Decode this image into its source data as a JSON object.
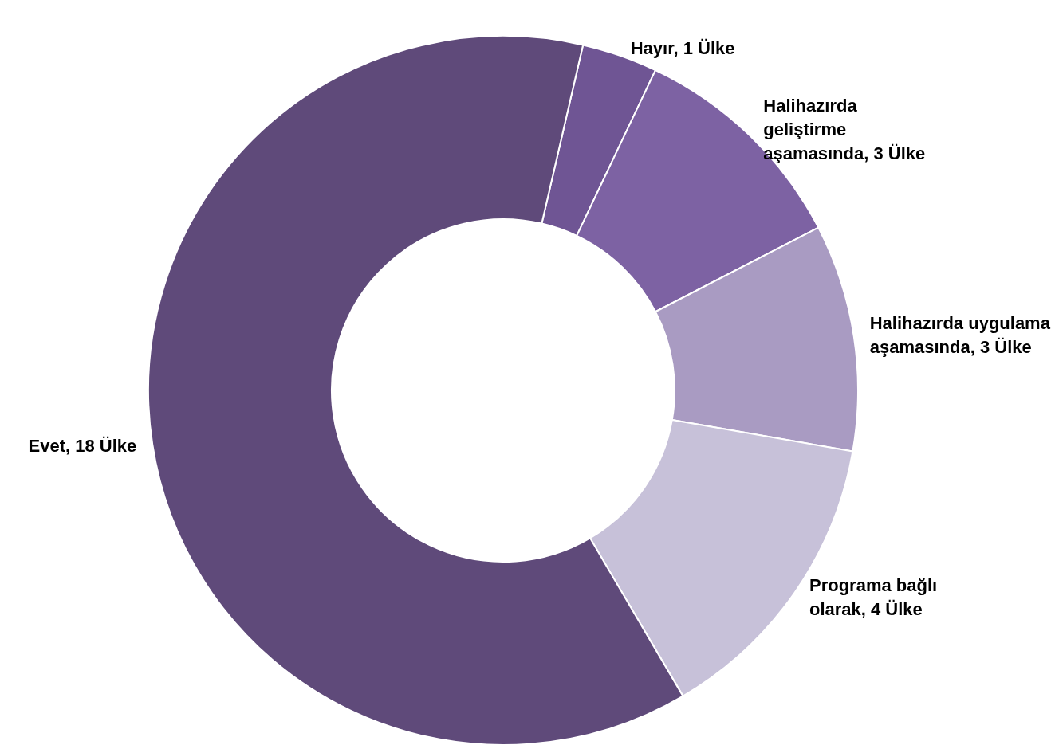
{
  "chart_data": {
    "type": "donut",
    "categories": [
      "Hayır",
      "Halihazırda geliştirme aşamasında",
      "Halihazırda uygulama aşamasında",
      "Programa bağlı olarak",
      "Evet"
    ],
    "values": [
      1,
      3,
      3,
      4,
      18
    ],
    "value_labels": [
      "1 Ülke",
      "3 Ülke",
      "3 Ülke",
      "4 Ülke",
      "18 Ülke"
    ],
    "colors": [
      "#6f5594",
      "#7d62a3",
      "#a99bc2",
      "#c7c1d9",
      "#5f4a7a"
    ],
    "legend": false
  }
}
